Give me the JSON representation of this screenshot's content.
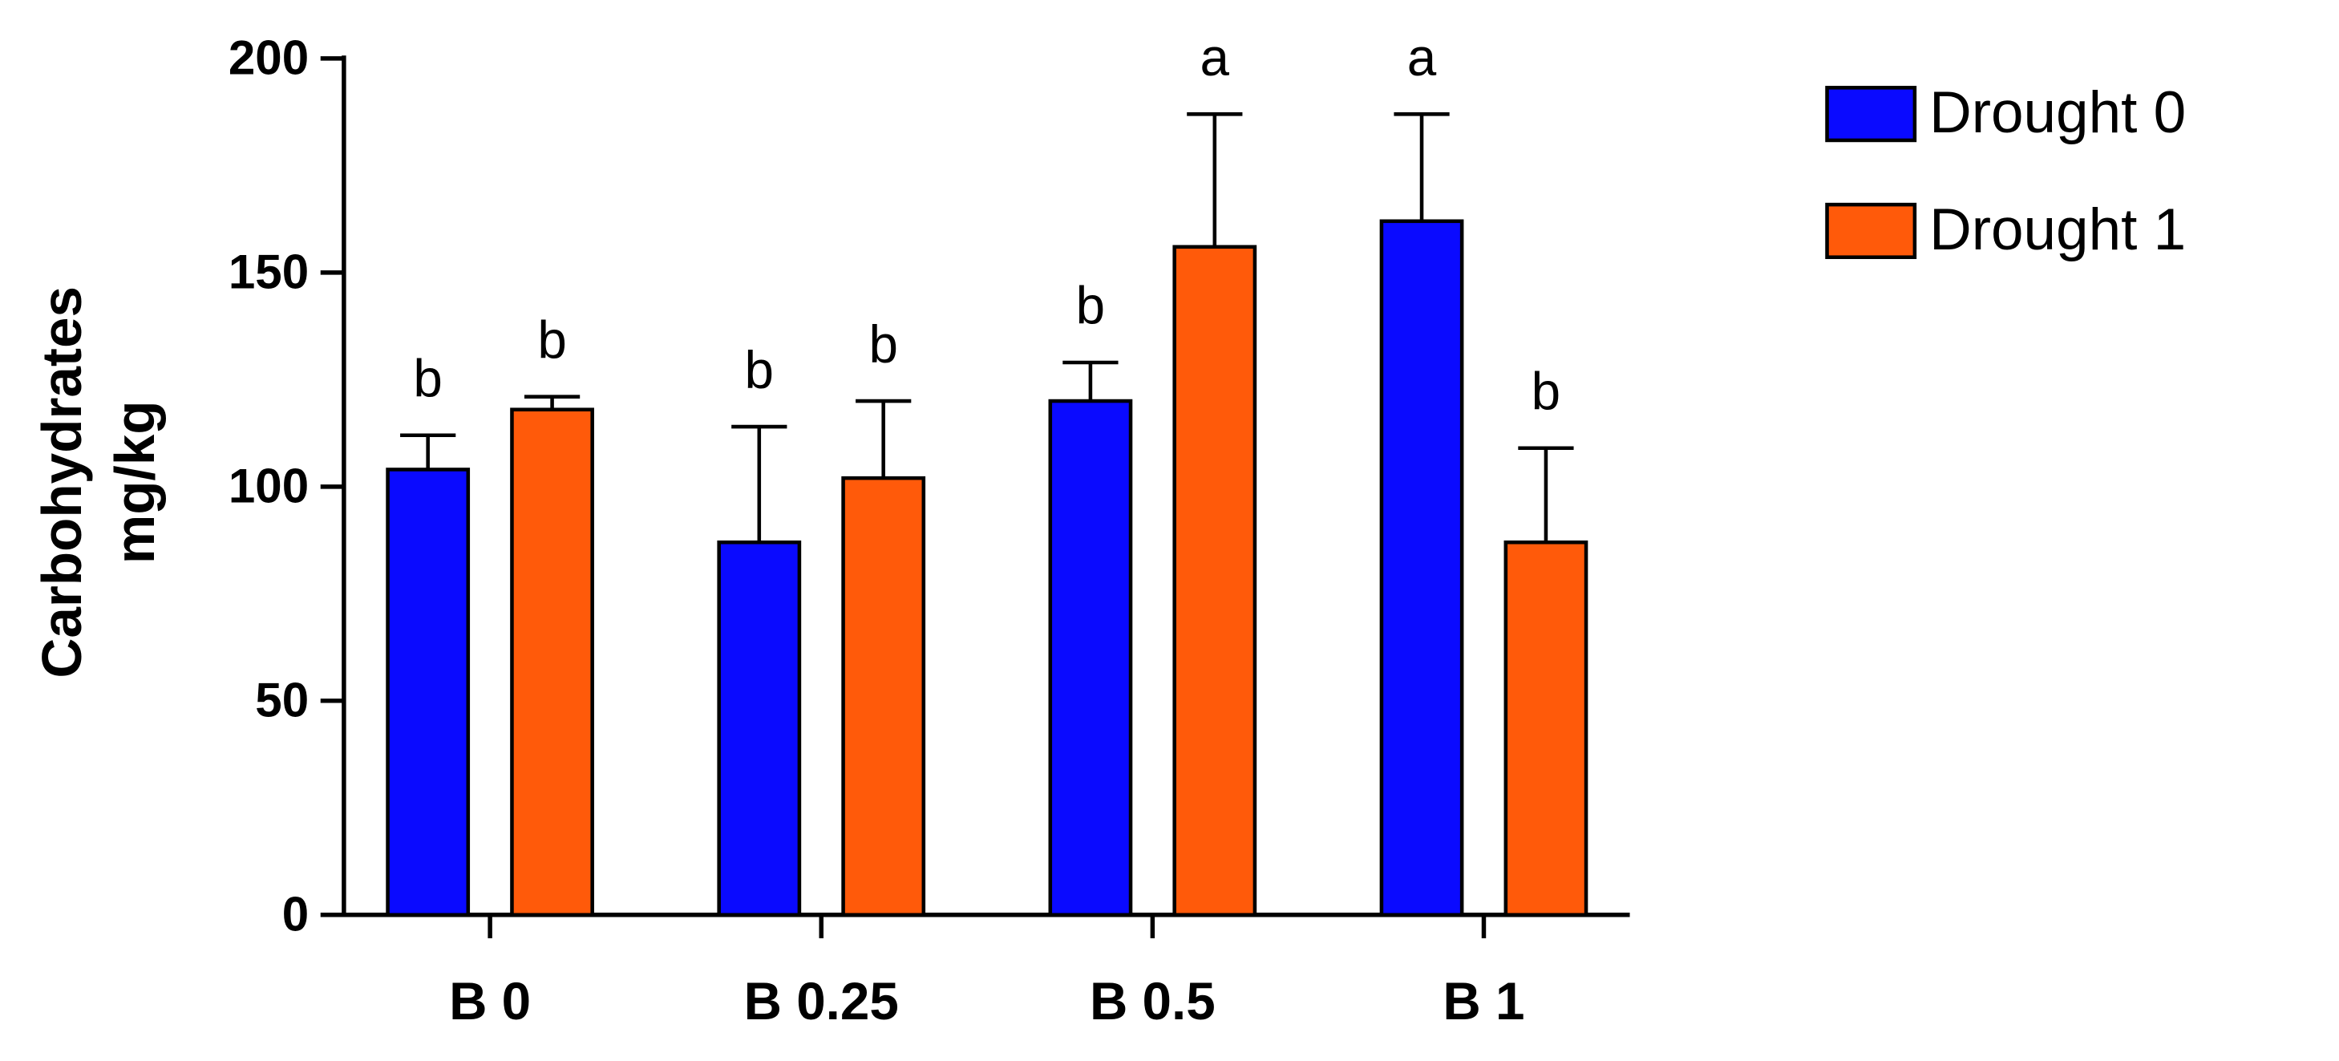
{
  "chart_data": {
    "type": "bar",
    "ylabel": [
      "Carbohydrates",
      "mg/kg"
    ],
    "categories": [
      "B 0",
      "B 0.25",
      "B 0.5",
      "B 1"
    ],
    "series": [
      {
        "name": "Drought 0",
        "color": "#0a0aff",
        "values": [
          104,
          87,
          120,
          162
        ],
        "errors": [
          8,
          27,
          9,
          25
        ],
        "letters": [
          "b",
          "b",
          "b",
          "a"
        ]
      },
      {
        "name": "Drought 1",
        "color": "#ff5a0a",
        "values": [
          118,
          102,
          156,
          87
        ],
        "errors": [
          3,
          18,
          31,
          22
        ],
        "letters": [
          "b",
          "b",
          "a",
          "b"
        ]
      }
    ],
    "ylim": [
      0,
      200
    ],
    "yticks": [
      0,
      50,
      100,
      150,
      200
    ],
    "legend": "right"
  }
}
